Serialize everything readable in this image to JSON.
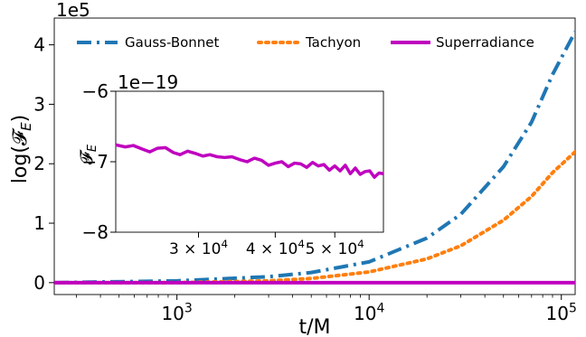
{
  "chart_data": [
    {
      "type": "line",
      "xscale": "log",
      "xlabel": "t/M",
      "ylabel": "log(𝓕",
      "ylabel_sub": "E",
      "ylabel_close": ")",
      "offset_label": "1e5",
      "xlim": [
        230,
        118000
      ],
      "ylim": [
        -0.2,
        4.45
      ],
      "xticks": [
        {
          "value": 1000,
          "base": "10",
          "exp": "3"
        },
        {
          "value": 10000,
          "base": "10",
          "exp": "4"
        },
        {
          "value": 100000,
          "base": "10",
          "exp": "5"
        }
      ],
      "yticks": [
        {
          "value": 0,
          "label": "0"
        },
        {
          "value": 1,
          "label": "1"
        },
        {
          "value": 2,
          "label": "2"
        },
        {
          "value": 3,
          "label": "3"
        },
        {
          "value": 4,
          "label": "4"
        }
      ],
      "legend_position": "top",
      "series": [
        {
          "name": "Gauss-Bonnet",
          "color": "#1f77b4",
          "style": "dashdot",
          "points": [
            [
              230,
              0.0
            ],
            [
              1000,
              0.03
            ],
            [
              3000,
              0.1
            ],
            [
              5000,
              0.17
            ],
            [
              10000,
              0.35
            ],
            [
              20000,
              0.75
            ],
            [
              30000,
              1.15
            ],
            [
              50000,
              1.95
            ],
            [
              70000,
              2.7
            ],
            [
              90000,
              3.5
            ],
            [
              118000,
              4.22
            ]
          ]
        },
        {
          "name": "Tachyon",
          "color": "#ff7f0e",
          "style": "dotted",
          "points": [
            [
              230,
              0.0
            ],
            [
              1000,
              0.0
            ],
            [
              3000,
              0.03
            ],
            [
              5000,
              0.07
            ],
            [
              10000,
              0.18
            ],
            [
              20000,
              0.4
            ],
            [
              30000,
              0.62
            ],
            [
              50000,
              1.05
            ],
            [
              70000,
              1.45
            ],
            [
              90000,
              1.85
            ],
            [
              118000,
              2.2
            ]
          ]
        },
        {
          "name": "Superradiance",
          "color": "#bf00bf",
          "style": "solid",
          "points": [
            [
              230,
              0.0
            ],
            [
              118000,
              0.0
            ]
          ]
        }
      ]
    },
    {
      "type": "line",
      "inset": true,
      "xscale": "log",
      "ylabel": "𝓕",
      "ylabel_sub": "E",
      "offset_label": "1e−19",
      "xlim": [
        22000,
        60000
      ],
      "ylim": [
        -8,
        -6
      ],
      "xticks": [
        {
          "value": 30000,
          "base": "3 × 10",
          "exp": "4"
        },
        {
          "value": 40000,
          "base": "4 × 10",
          "exp": "4"
        },
        {
          "value": 50000,
          "base": "5 × 10",
          "exp": "4"
        }
      ],
      "yticks": [
        {
          "value": -6,
          "label": "−6"
        },
        {
          "value": -7,
          "label": "−7"
        },
        {
          "value": -8,
          "label": "−8"
        }
      ],
      "series": [
        {
          "name": "Superradiance",
          "color": "#bf00bf",
          "style": "solid",
          "points": [
            [
              22000,
              -6.76
            ],
            [
              22800,
              -6.79
            ],
            [
              23500,
              -6.77
            ],
            [
              24300,
              -6.82
            ],
            [
              25000,
              -6.86
            ],
            [
              25700,
              -6.81
            ],
            [
              26500,
              -6.8
            ],
            [
              27300,
              -6.87
            ],
            [
              28000,
              -6.9
            ],
            [
              28800,
              -6.85
            ],
            [
              29600,
              -6.88
            ],
            [
              30500,
              -6.92
            ],
            [
              31300,
              -6.9
            ],
            [
              32200,
              -6.93
            ],
            [
              33100,
              -6.94
            ],
            [
              34000,
              -6.93
            ],
            [
              35000,
              -6.97
            ],
            [
              36000,
              -7.0
            ],
            [
              37000,
              -6.95
            ],
            [
              38000,
              -6.98
            ],
            [
              39000,
              -7.05
            ],
            [
              40000,
              -7.02
            ],
            [
              41000,
              -7.0
            ],
            [
              42000,
              -7.07
            ],
            [
              43000,
              -7.02
            ],
            [
              44000,
              -7.03
            ],
            [
              45000,
              -7.08
            ],
            [
              46000,
              -7.01
            ],
            [
              47000,
              -7.06
            ],
            [
              48000,
              -7.04
            ],
            [
              49000,
              -7.12
            ],
            [
              50000,
              -7.06
            ],
            [
              51000,
              -7.13
            ],
            [
              52000,
              -7.05
            ],
            [
              53000,
              -7.17
            ],
            [
              54000,
              -7.09
            ],
            [
              55000,
              -7.18
            ],
            [
              56000,
              -7.14
            ],
            [
              57000,
              -7.13
            ],
            [
              58000,
              -7.22
            ],
            [
              59000,
              -7.16
            ],
            [
              60000,
              -7.17
            ]
          ]
        }
      ]
    }
  ]
}
